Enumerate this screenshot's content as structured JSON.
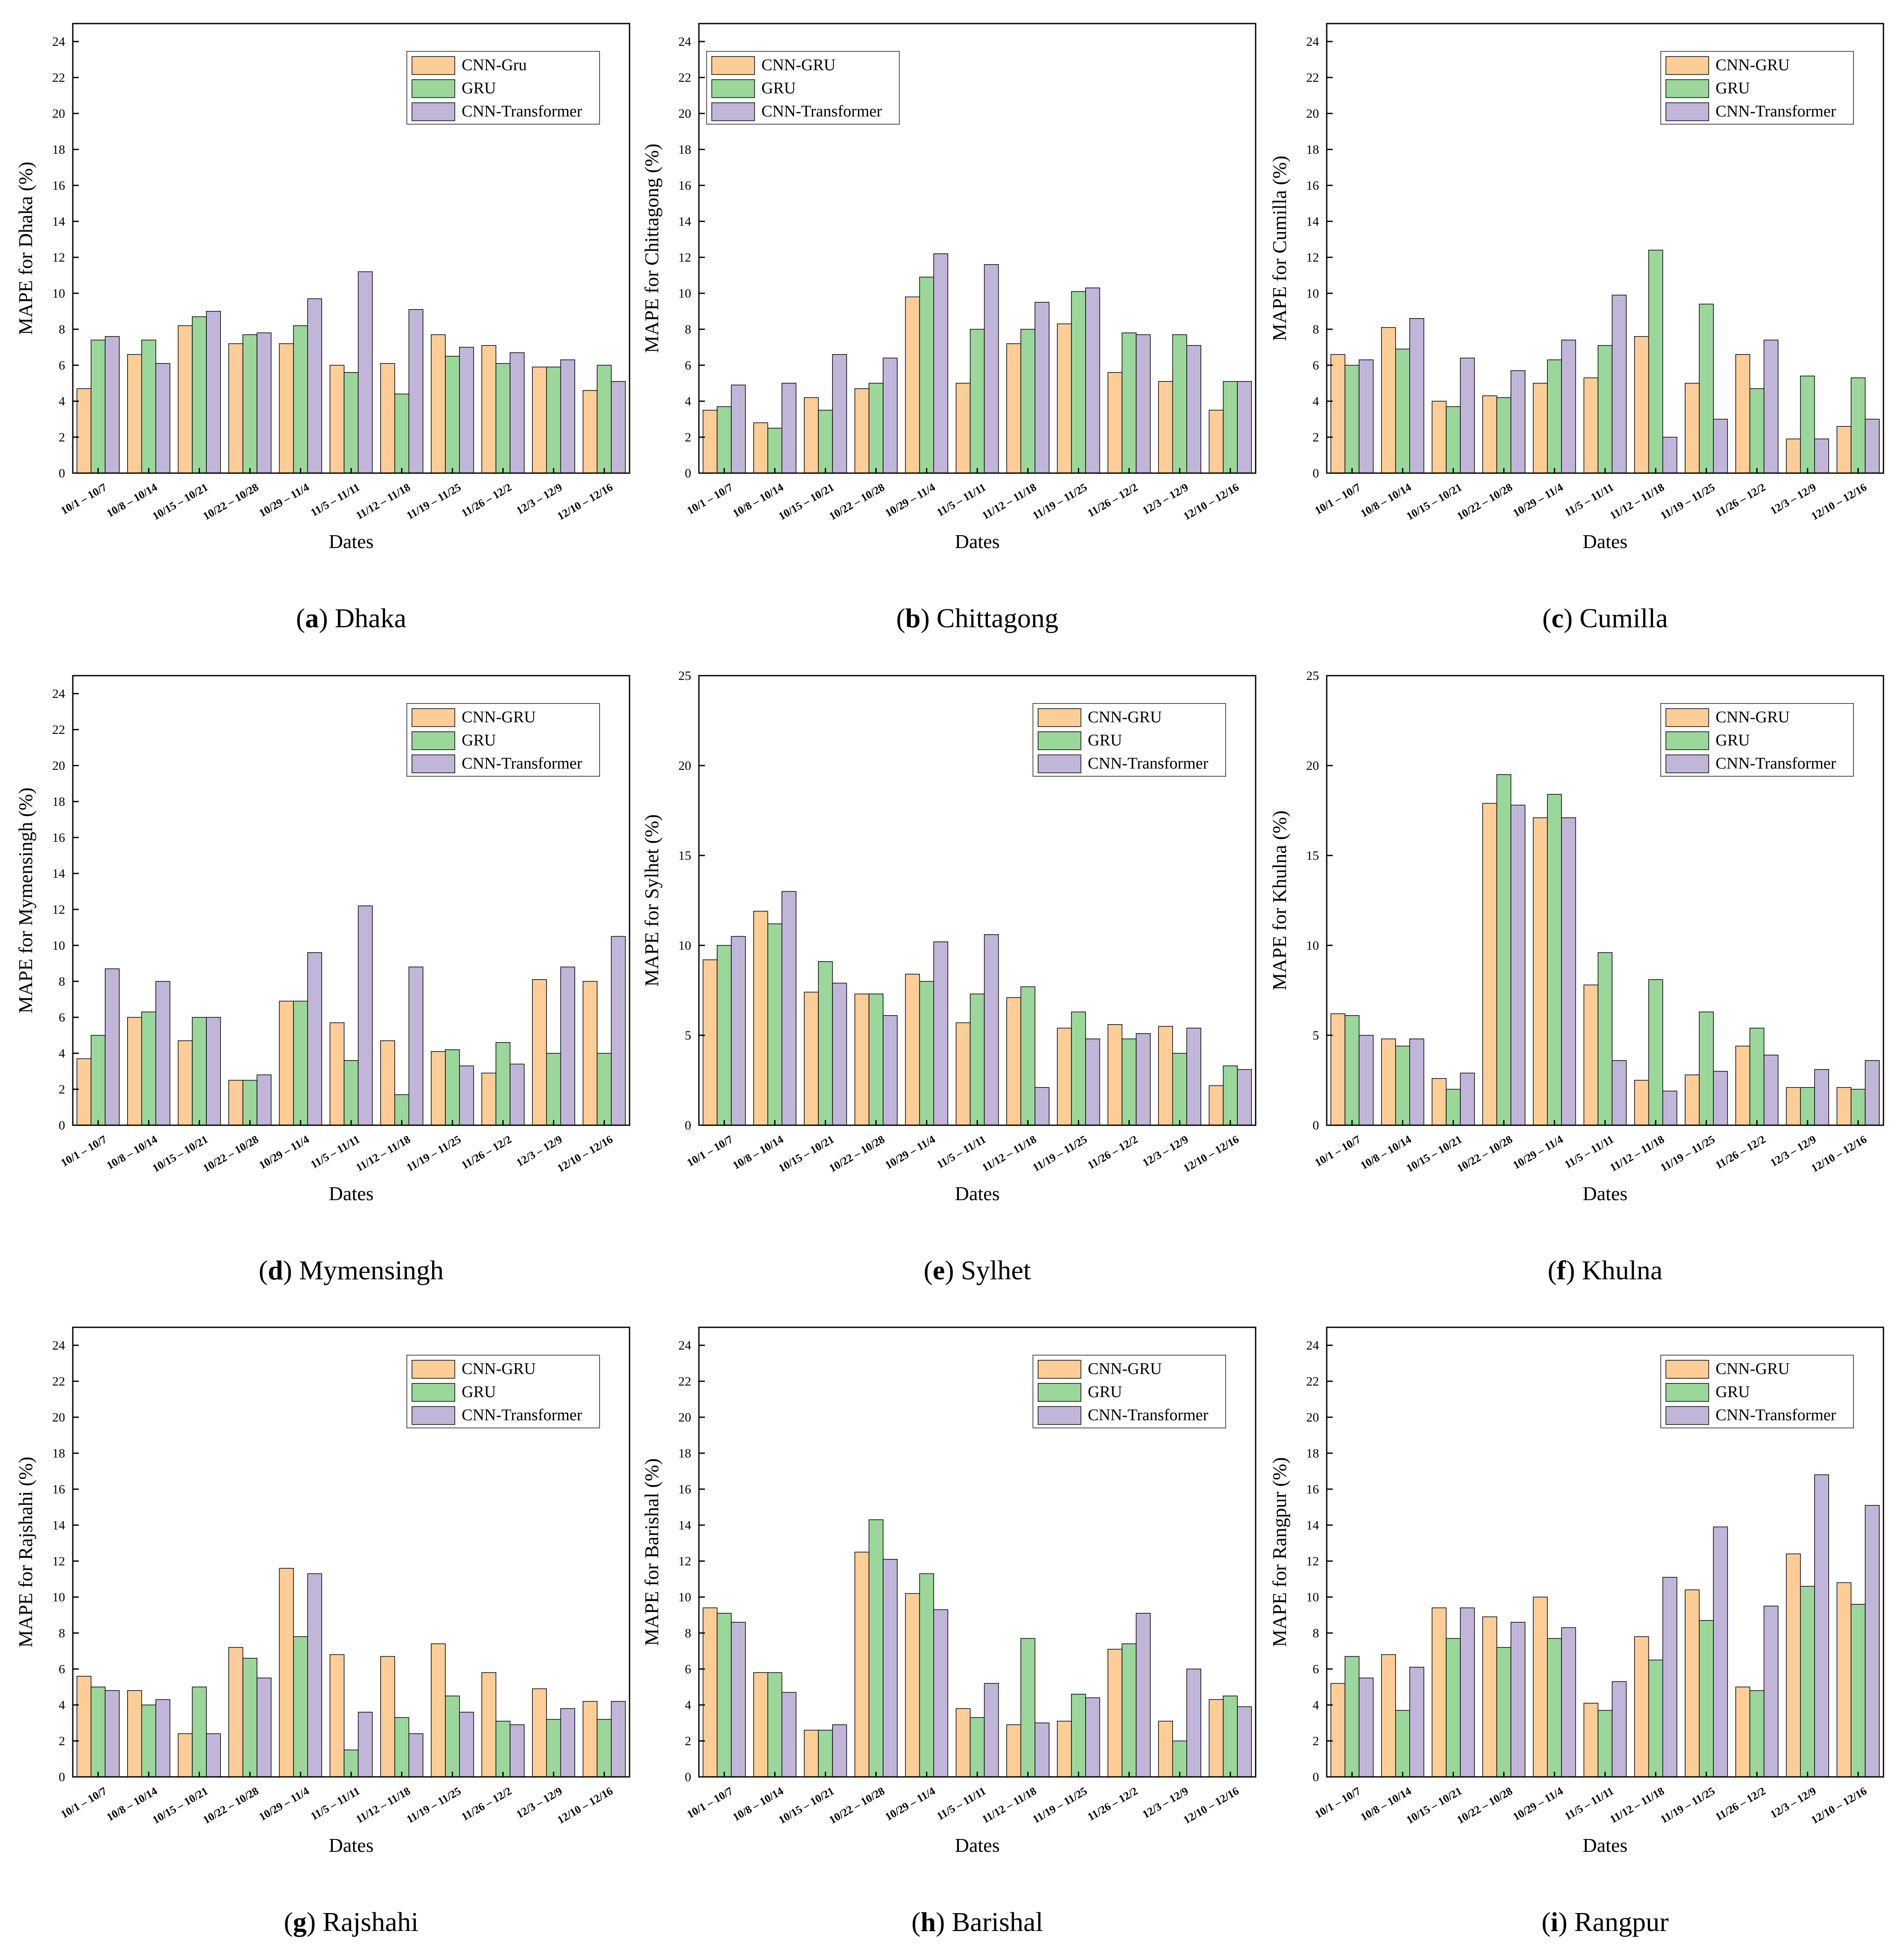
{
  "figure": {
    "xlabel": "Dates",
    "dates": [
      "10/1 – 10/7",
      "10/8 – 10/14",
      "10/15 – 10/21",
      "10/22 – 10/28",
      "10/29 – 11/4",
      "11/5 – 11/11",
      "11/12 – 11/18",
      "11/19 – 11/25",
      "11/26 – 12/2",
      "12/3 – 12/9",
      "12/10 – 12/16"
    ],
    "colors": {
      "CNN-GRU": "#fdcd98",
      "GRU": "#9bd69a",
      "CNN-Transformer": "#c2b5da"
    }
  },
  "chart_data": [
    {
      "type": "bar",
      "letter": "a",
      "city": "Dhaka",
      "ylabel": "MAPE for Dhaka (%)",
      "ylim": [
        0,
        25
      ],
      "yticks": [
        0,
        2,
        4,
        6,
        8,
        10,
        12,
        14,
        16,
        18,
        20,
        22,
        24
      ],
      "legend_labels": [
        "CNN-Gru",
        "GRU",
        "CNN-Transformer"
      ],
      "legend_position": "top-right",
      "series": [
        {
          "name": "CNN-GRU",
          "values": [
            4.7,
            6.6,
            8.2,
            7.2,
            7.2,
            6.0,
            6.1,
            7.7,
            7.1,
            5.9,
            4.6
          ]
        },
        {
          "name": "GRU",
          "values": [
            7.4,
            7.4,
            8.7,
            7.7,
            8.2,
            5.6,
            4.4,
            6.5,
            6.1,
            5.9,
            6.0
          ]
        },
        {
          "name": "CNN-Transformer",
          "values": [
            7.6,
            6.1,
            9.0,
            7.8,
            9.7,
            11.2,
            9.1,
            7.0,
            6.7,
            6.3,
            5.1
          ]
        }
      ]
    },
    {
      "type": "bar",
      "letter": "b",
      "city": "Chittagong",
      "ylabel": "MAPE for Chittagong (%)",
      "ylim": [
        0,
        25
      ],
      "yticks": [
        0,
        2,
        4,
        6,
        8,
        10,
        12,
        14,
        16,
        18,
        20,
        22,
        24
      ],
      "legend_labels": [
        "CNN-GRU",
        "GRU",
        "CNN-Transformer"
      ],
      "legend_position": "top-left",
      "series": [
        {
          "name": "CNN-GRU",
          "values": [
            3.5,
            2.8,
            4.2,
            4.7,
            9.8,
            5.0,
            7.2,
            8.3,
            5.6,
            5.1,
            3.5
          ]
        },
        {
          "name": "GRU",
          "values": [
            3.7,
            2.5,
            3.5,
            5.0,
            10.9,
            8.0,
            8.0,
            10.1,
            7.8,
            7.7,
            5.1
          ]
        },
        {
          "name": "CNN-Transformer",
          "values": [
            4.9,
            5.0,
            6.6,
            6.4,
            12.2,
            11.6,
            9.5,
            10.3,
            7.7,
            7.1,
            5.1
          ]
        }
      ]
    },
    {
      "type": "bar",
      "letter": "c",
      "city": "Cumilla",
      "ylabel": "MAPE for Cumilla (%)",
      "ylim": [
        0,
        25
      ],
      "yticks": [
        0,
        2,
        4,
        6,
        8,
        10,
        12,
        14,
        16,
        18,
        20,
        22,
        24
      ],
      "legend_labels": [
        "CNN-GRU",
        "GRU",
        "CNN-Transformer"
      ],
      "legend_position": "top-right",
      "series": [
        {
          "name": "CNN-GRU",
          "values": [
            6.6,
            8.1,
            4.0,
            4.3,
            5.0,
            5.3,
            7.6,
            5.0,
            6.6,
            1.9,
            2.6
          ]
        },
        {
          "name": "GRU",
          "values": [
            6.0,
            6.9,
            3.7,
            4.2,
            6.3,
            7.1,
            12.4,
            9.4,
            4.7,
            5.4,
            5.3
          ]
        },
        {
          "name": "CNN-Transformer",
          "values": [
            6.3,
            8.6,
            6.4,
            5.7,
            7.4,
            9.9,
            2.0,
            3.0,
            7.4,
            1.9,
            3.0
          ]
        }
      ]
    },
    {
      "type": "bar",
      "letter": "d",
      "city": "Mymensingh",
      "ylabel": "MAPE for Mymensingh (%)",
      "ylim": [
        0,
        25
      ],
      "yticks": [
        0,
        2,
        4,
        6,
        8,
        10,
        12,
        14,
        16,
        18,
        20,
        22,
        24
      ],
      "legend_labels": [
        "CNN-GRU",
        "GRU",
        "CNN-Transformer"
      ],
      "legend_position": "top-right",
      "series": [
        {
          "name": "CNN-GRU",
          "values": [
            3.7,
            6.0,
            4.7,
            2.5,
            6.9,
            5.7,
            4.7,
            4.1,
            2.9,
            8.1,
            8.0
          ]
        },
        {
          "name": "GRU",
          "values": [
            5.0,
            6.3,
            6.0,
            2.5,
            6.9,
            3.6,
            1.7,
            4.2,
            4.6,
            4.0,
            4.0
          ]
        },
        {
          "name": "CNN-Transformer",
          "values": [
            8.7,
            8.0,
            6.0,
            2.8,
            9.6,
            12.2,
            8.8,
            3.3,
            3.4,
            8.8,
            10.5
          ]
        }
      ]
    },
    {
      "type": "bar",
      "letter": "e",
      "city": "Sylhet",
      "ylabel": "MAPE for Sylhet (%)",
      "ylim": [
        0,
        25
      ],
      "yticks": [
        0,
        5,
        10,
        15,
        20,
        25
      ],
      "legend_labels": [
        "CNN-GRU",
        "GRU",
        "CNN-Transformer"
      ],
      "legend_position": "top-right",
      "series": [
        {
          "name": "CNN-GRU",
          "values": [
            9.2,
            11.9,
            7.4,
            7.3,
            8.4,
            5.7,
            7.1,
            5.4,
            5.6,
            5.5,
            2.2
          ]
        },
        {
          "name": "GRU",
          "values": [
            10.0,
            11.2,
            9.1,
            7.3,
            8.0,
            7.3,
            7.7,
            6.3,
            4.8,
            4.0,
            3.3
          ]
        },
        {
          "name": "CNN-Transformer",
          "values": [
            10.5,
            13.0,
            7.9,
            6.1,
            10.2,
            10.6,
            2.1,
            4.8,
            5.1,
            5.4,
            3.1
          ]
        }
      ]
    },
    {
      "type": "bar",
      "letter": "f",
      "city": "Khulna",
      "ylabel": "MAPE for Khulna (%)",
      "ylim": [
        0,
        25
      ],
      "yticks": [
        0,
        5,
        10,
        15,
        20,
        25
      ],
      "legend_labels": [
        "CNN-GRU",
        "GRU",
        "CNN-Transformer"
      ],
      "legend_position": "top-right",
      "series": [
        {
          "name": "CNN-GRU",
          "values": [
            6.2,
            4.8,
            2.6,
            17.9,
            17.1,
            7.8,
            2.5,
            2.8,
            4.4,
            2.1,
            2.1
          ]
        },
        {
          "name": "GRU",
          "values": [
            6.1,
            4.4,
            2.0,
            19.5,
            18.4,
            9.6,
            8.1,
            6.3,
            5.4,
            2.1,
            2.0
          ]
        },
        {
          "name": "CNN-Transformer",
          "values": [
            5.0,
            4.8,
            2.9,
            17.8,
            17.1,
            3.6,
            1.9,
            3.0,
            3.9,
            3.1,
            3.6
          ]
        }
      ]
    },
    {
      "type": "bar",
      "letter": "g",
      "city": "Rajshahi",
      "ylabel": "MAPE for Rajshahi (%)",
      "ylim": [
        0,
        25
      ],
      "yticks": [
        0,
        2,
        4,
        6,
        8,
        10,
        12,
        14,
        16,
        18,
        20,
        22,
        24
      ],
      "legend_labels": [
        "CNN-GRU",
        "GRU",
        "CNN-Transformer"
      ],
      "legend_position": "top-right",
      "series": [
        {
          "name": "CNN-GRU",
          "values": [
            5.6,
            4.8,
            2.4,
            7.2,
            11.6,
            6.8,
            6.7,
            7.4,
            5.8,
            4.9,
            4.2
          ]
        },
        {
          "name": "GRU",
          "values": [
            5.0,
            4.0,
            5.0,
            6.6,
            7.8,
            1.5,
            3.3,
            4.5,
            3.1,
            3.2,
            3.2
          ]
        },
        {
          "name": "CNN-Transformer",
          "values": [
            4.8,
            4.3,
            2.4,
            5.5,
            11.3,
            3.6,
            2.4,
            3.6,
            2.9,
            3.8,
            4.2
          ]
        }
      ]
    },
    {
      "type": "bar",
      "letter": "h",
      "city": "Barishal",
      "ylabel": "MAPE for Barishal (%)",
      "ylim": [
        0,
        25
      ],
      "yticks": [
        0,
        2,
        4,
        6,
        8,
        10,
        12,
        14,
        16,
        18,
        20,
        22,
        24
      ],
      "legend_labels": [
        "CNN-GRU",
        "GRU",
        "CNN-Transformer"
      ],
      "legend_position": "top-right",
      "series": [
        {
          "name": "CNN-GRU",
          "values": [
            9.4,
            5.8,
            2.6,
            12.5,
            10.2,
            3.8,
            2.9,
            3.1,
            7.1,
            3.1,
            4.3
          ]
        },
        {
          "name": "GRU",
          "values": [
            9.1,
            5.8,
            2.6,
            14.3,
            11.3,
            3.3,
            7.7,
            4.6,
            7.4,
            2.0,
            4.5
          ]
        },
        {
          "name": "CNN-Transformer",
          "values": [
            8.6,
            4.7,
            2.9,
            12.1,
            9.3,
            5.2,
            3.0,
            4.4,
            9.1,
            6.0,
            3.9
          ]
        }
      ]
    },
    {
      "type": "bar",
      "letter": "i",
      "city": "Rangpur",
      "ylabel": "MAPE for Rangpur (%)",
      "ylim": [
        0,
        25
      ],
      "yticks": [
        0,
        2,
        4,
        6,
        8,
        10,
        12,
        14,
        16,
        18,
        20,
        22,
        24
      ],
      "legend_labels": [
        "CNN-GRU",
        "GRU",
        "CNN-Transformer"
      ],
      "legend_position": "top-right",
      "series": [
        {
          "name": "CNN-GRU",
          "values": [
            5.2,
            6.8,
            9.4,
            8.9,
            10.0,
            4.1,
            7.8,
            10.4,
            5.0,
            12.4,
            10.8
          ]
        },
        {
          "name": "GRU",
          "values": [
            6.7,
            3.7,
            7.7,
            7.2,
            7.7,
            3.7,
            6.5,
            8.7,
            4.8,
            10.6,
            9.6
          ]
        },
        {
          "name": "CNN-Transformer",
          "values": [
            5.5,
            6.1,
            9.4,
            8.6,
            8.3,
            5.3,
            11.1,
            13.9,
            9.5,
            16.8,
            15.1
          ]
        }
      ]
    }
  ]
}
